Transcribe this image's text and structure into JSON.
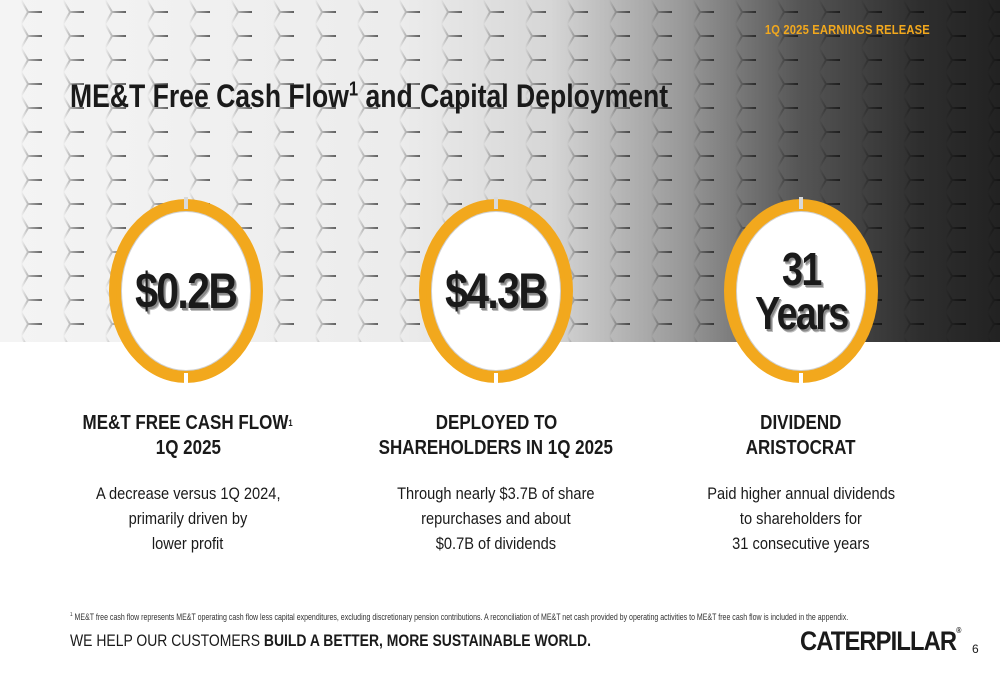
{
  "header": {
    "release_label": "1Q 2025 EARNINGS RELEASE",
    "title": "ME&T Free Cash Flow",
    "title_sup": "1",
    "title_rest": " and Capital Deployment"
  },
  "highlights": [
    {
      "value": "$0.2B",
      "heading_line1": "ME&T FREE CASH FLOW",
      "heading_sup": "1",
      "heading_line2": "1Q 2025",
      "body_line1": "A decrease versus 1Q 2024,",
      "body_line2": "primarily driven by",
      "body_line3": "lower profit"
    },
    {
      "value": "$4.3B",
      "heading_line1": "DEPLOYED TO",
      "heading_line2": "SHAREHOLDERS IN 1Q 2025",
      "body_line1": "Through nearly $3.7B of share",
      "body_line2": "repurchases and about",
      "body_line3": "$0.7B of dividends"
    },
    {
      "value_line1": "31",
      "value_line2": "Years",
      "heading_line1": "DIVIDEND",
      "heading_line2": "ARISTOCRAT",
      "body_line1": "Paid higher annual dividends",
      "body_line2": "to shareholders for",
      "body_line3": "31 consecutive years"
    }
  ],
  "footer": {
    "footnote_marker": "1",
    "footnote": " ME&T free cash flow represents ME&T operating cash flow less capital expenditures, excluding discretionary pension contributions. A reconciliation of ME&T net cash provided by operating activities to ME&T free cash flow is included in the appendix.",
    "tagline_plain": "WE HELP OUR CUSTOMERS ",
    "tagline_bold": "BUILD A BETTER, MORE SUSTAINABLE WORLD.",
    "logo_a": "CAT",
    "logo_b": "ERPILLAR",
    "logo_reg": "®",
    "page_number": "6"
  },
  "colors": {
    "accent": "#f2a81d",
    "text": "#1a1a1a"
  }
}
